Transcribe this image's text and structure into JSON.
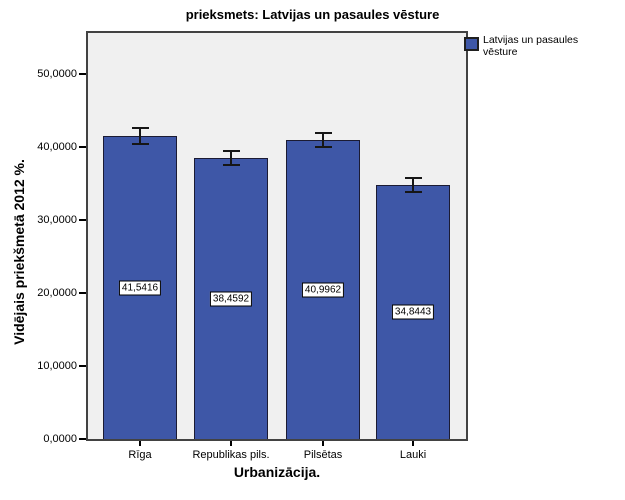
{
  "chart": {
    "title": "prieksmets: Latvijas un pasaules vēsture",
    "y_axis": {
      "label": "Vidējais priekšmetā 2012 %.",
      "ticks": [
        "0,0000",
        "10,0000",
        "20,0000",
        "30,0000",
        "40,0000",
        "50,0000"
      ]
    },
    "x_axis": {
      "label": "Urbanizācija."
    },
    "legend": {
      "label": "Latvijas un pasaules vēsture"
    },
    "colors": {
      "bar_fill": "#3e57a7",
      "bar_border": "#1b1b33",
      "plot_background": "#f0f0f0",
      "frame_border": "#424242",
      "error_bar": "#161616"
    }
  },
  "chart_data": {
    "type": "bar",
    "title": "prieksmets: Latvijas un pasaules vēsture",
    "categories": [
      "Rīga",
      "Republikas pils.",
      "Pilsētas",
      "Lauki"
    ],
    "values": [
      41.5416,
      38.4592,
      40.9962,
      34.8443
    ],
    "value_labels": [
      "41,5416",
      "38,4592",
      "40,9962",
      "34,8443"
    ],
    "errors": [
      1.1,
      0.9,
      1.0,
      0.9
    ],
    "series": [
      {
        "name": "Latvijas un pasaules vēsture",
        "values": [
          41.5416,
          38.4592,
          40.9962,
          34.8443
        ]
      }
    ],
    "xlabel": "Urbanizācija.",
    "ylabel": "Vidējais priekšmetā 2012 %.",
    "ylim": [
      0,
      50
    ],
    "ytick_step": 10,
    "grid": false,
    "legend_position": "top-right",
    "bar_color": "#3e57a7"
  }
}
